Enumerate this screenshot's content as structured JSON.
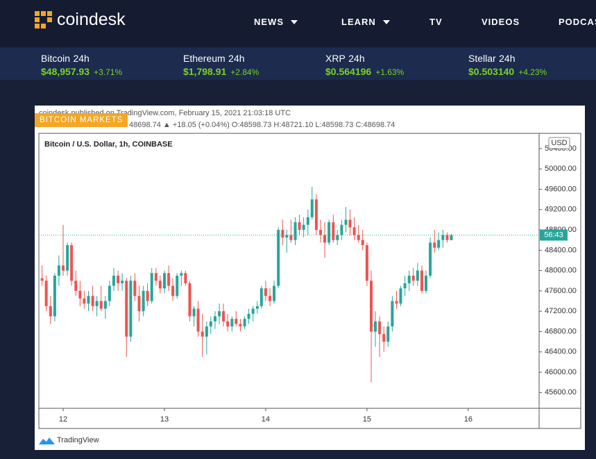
{
  "header": {
    "logo": "coindesk",
    "nav": [
      "NEWS",
      "LEARN",
      "TV",
      "VIDEOS",
      "PODCASTS"
    ]
  },
  "ticker": [
    {
      "name": "Bitcoin",
      "period": "24h",
      "price": "$48,957.93",
      "change": "+3.71%"
    },
    {
      "name": "Ethereum",
      "period": "24h",
      "price": "$1,798.91",
      "change": "+2.84%"
    },
    {
      "name": "XRP",
      "period": "24h",
      "price": "$0.564196",
      "change": "+1.63%"
    },
    {
      "name": "Stellar",
      "period": "24h",
      "price": "$0.503140",
      "change": "+4.23%"
    }
  ],
  "badge": "BITCOIN MARKETS",
  "chart_data": {
    "type": "candlestick",
    "source_line": "coindesk published on TradingView.com, February 15, 2021 21:03:18 UTC",
    "legend_text": "48698.74 ▲ +18.05 (+0.04%) O:48598.73 H:48721.10 L:48598.73 C:48698.74",
    "title": "Bitcoin / U.S. Dollar, 1h, COINBASE",
    "currency": "USD",
    "countdown": "56:43",
    "brand": "TradingView",
    "up_color": "#26a69a",
    "down_color": "#ef5350",
    "xlim": [
      11.76,
      16.7
    ],
    "xticks": [
      12,
      13,
      14,
      15,
      16
    ],
    "ylim": [
      45290,
      50700
    ],
    "yticks": [
      {
        "value": 45600,
        "label": "45600.00"
      },
      {
        "value": 46000,
        "label": "46000.00"
      },
      {
        "value": 46400,
        "label": "46400.00"
      },
      {
        "value": 46800,
        "label": "46800.00"
      },
      {
        "value": 47200,
        "label": "47200.00"
      },
      {
        "value": 47600,
        "label": "47600.00"
      },
      {
        "value": 48000,
        "label": "48000.00"
      },
      {
        "value": 48400,
        "label": "48400.00"
      },
      {
        "value": 48800,
        "label": "48800.00"
      },
      {
        "value": 49200,
        "label": "49200.00"
      },
      {
        "value": 49600,
        "label": "49600.00"
      },
      {
        "value": 50000,
        "label": "50000.00"
      },
      {
        "value": 50400,
        "label": "50400.00"
      }
    ],
    "x": [
      11.792,
      11.833,
      11.875,
      11.917,
      11.958,
      12,
      12.042,
      12.083,
      12.125,
      12.167,
      12.208,
      12.25,
      12.292,
      12.333,
      12.375,
      12.417,
      12.458,
      12.5,
      12.542,
      12.583,
      12.625,
      12.667,
      12.708,
      12.75,
      12.792,
      12.833,
      12.875,
      12.917,
      12.958,
      13,
      13.042,
      13.083,
      13.125,
      13.167,
      13.208,
      13.25,
      13.292,
      13.333,
      13.375,
      13.417,
      13.458,
      13.5,
      13.542,
      13.583,
      13.625,
      13.667,
      13.708,
      13.75,
      13.792,
      13.833,
      13.875,
      13.917,
      13.958,
      14,
      14.042,
      14.083,
      14.125,
      14.167,
      14.208,
      14.25,
      14.292,
      14.333,
      14.375,
      14.417,
      14.458,
      14.5,
      14.542,
      14.583,
      14.625,
      14.667,
      14.708,
      14.75,
      14.792,
      14.833,
      14.875,
      14.917,
      14.958,
      15,
      15.042,
      15.083,
      15.125,
      15.167,
      15.208,
      15.25,
      15.292,
      15.333,
      15.375,
      15.417,
      15.458,
      15.5,
      15.542,
      15.583,
      15.625,
      15.667,
      15.708,
      15.75,
      15.792,
      15.833
    ],
    "open": [
      47850,
      47800,
      47300,
      47100,
      47900,
      48100,
      48000,
      48500,
      47800,
      47600,
      47450,
      47350,
      47500,
      47300,
      47400,
      47250,
      47400,
      47700,
      47900,
      47750,
      47800,
      46700,
      47800,
      47500,
      47200,
      47600,
      47400,
      47950,
      47800,
      47650,
      47950,
      47700,
      47500,
      47900,
      47950,
      47750,
      47100,
      47250,
      46800,
      46700,
      46900,
      47000,
      47100,
      47200,
      47000,
      46900,
      47050,
      46950,
      46900,
      47050,
      47150,
      47250,
      47300,
      47650,
      47500,
      47400,
      47700,
      48800,
      48650,
      48700,
      48600,
      48950,
      48800,
      48900,
      49050,
      49400,
      48800,
      48700,
      48550,
      48950,
      48600,
      48700,
      48900,
      49000,
      48850,
      48700,
      48600,
      48500,
      47800,
      46800,
      47000,
      46750,
      46600,
      46900,
      47400,
      47350,
      47650,
      47750,
      47900,
      47800,
      48000,
      47600,
      47900,
      48550,
      48450,
      48600,
      48700,
      48598.73
    ],
    "high": [
      48100,
      47900,
      47500,
      47950,
      48300,
      48900,
      48550,
      48550,
      48000,
      47800,
      47600,
      47600,
      47700,
      47500,
      47700,
      47500,
      47800,
      48050,
      48000,
      47950,
      47850,
      47900,
      47950,
      47700,
      47700,
      47750,
      48050,
      48050,
      47900,
      48000,
      48100,
      47850,
      47950,
      48000,
      48000,
      47800,
      47300,
      47400,
      47150,
      47000,
      47100,
      47200,
      47350,
      47350,
      47150,
      47100,
      47200,
      47050,
      47100,
      47250,
      47300,
      47400,
      47700,
      47800,
      47650,
      47800,
      48850,
      49000,
      48800,
      49000,
      49050,
      49100,
      49050,
      49200,
      49650,
      49500,
      49000,
      48950,
      49000,
      49100,
      48800,
      49000,
      49250,
      49200,
      49050,
      48900,
      48800,
      48550,
      48000,
      47200,
      47100,
      46900,
      47000,
      47500,
      47600,
      47700,
      47900,
      48000,
      48050,
      48150,
      48100,
      48000,
      48650,
      48800,
      48750,
      48800,
      48750,
      48721.1
    ],
    "low": [
      47700,
      47200,
      46950,
      47000,
      47700,
      47900,
      47900,
      47700,
      47500,
      47300,
      47250,
      47200,
      47200,
      47100,
      47200,
      47050,
      47300,
      47600,
      47600,
      47600,
      46300,
      46600,
      47400,
      47000,
      47100,
      47300,
      47350,
      47700,
      47550,
      47550,
      47600,
      47400,
      47450,
      47700,
      47700,
      47000,
      46900,
      46700,
      46300,
      46350,
      46750,
      46850,
      46950,
      46900,
      46800,
      46800,
      46900,
      46800,
      46850,
      46950,
      47000,
      47150,
      47250,
      47400,
      47300,
      47350,
      47650,
      48500,
      48350,
      48550,
      48500,
      48700,
      48650,
      48700,
      49000,
      48700,
      48550,
      48250,
      48500,
      48550,
      48500,
      48600,
      48750,
      48700,
      48600,
      48550,
      48400,
      47700,
      45800,
      46500,
      46300,
      46400,
      46500,
      46800,
      47250,
      47300,
      47500,
      47600,
      47700,
      47700,
      47550,
      47550,
      47850,
      48350,
      48400,
      48450,
      48550,
      48598.73
    ],
    "close": [
      47800,
      47300,
      47100,
      47900,
      48100,
      48000,
      48500,
      47800,
      47600,
      47450,
      47350,
      47500,
      47300,
      47400,
      47250,
      47400,
      47700,
      47900,
      47750,
      47800,
      46700,
      47800,
      47500,
      47200,
      47600,
      47400,
      47950,
      47800,
      47650,
      47950,
      47700,
      47500,
      47900,
      47950,
      47750,
      47100,
      47250,
      46800,
      46700,
      46900,
      47000,
      47100,
      47200,
      47000,
      46900,
      47050,
      46950,
      46900,
      47050,
      47150,
      47250,
      47300,
      47650,
      47500,
      47400,
      47700,
      48800,
      48650,
      48700,
      48600,
      48950,
      48800,
      48900,
      49050,
      49400,
      48800,
      48700,
      48550,
      48950,
      48600,
      48700,
      48900,
      49000,
      48850,
      48700,
      48600,
      48500,
      47800,
      46800,
      47000,
      46750,
      46600,
      46900,
      47400,
      47350,
      47650,
      47750,
      47900,
      47800,
      48000,
      47600,
      47900,
      48550,
      48450,
      48600,
      48700,
      48600,
      48698.74
    ]
  }
}
